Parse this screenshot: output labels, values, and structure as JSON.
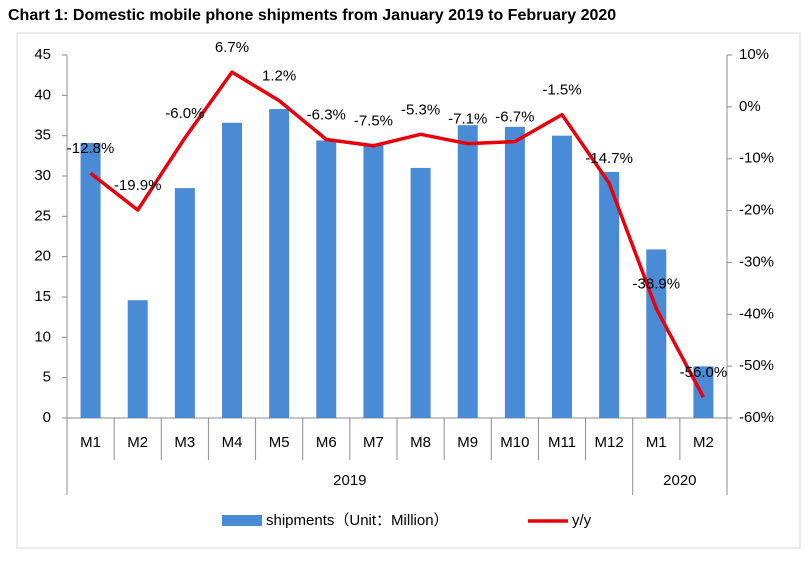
{
  "chart_data": {
    "type": "bar-line",
    "title": "Chart 1: Domestic mobile phone shipments from January 2019 to February 2020",
    "groups": [
      {
        "name": "2019",
        "categories": [
          "M1",
          "M2",
          "M3",
          "M4",
          "M5",
          "M6",
          "M7",
          "M8",
          "M9",
          "M10",
          "M11",
          "M12"
        ]
      },
      {
        "name": "2020",
        "categories": [
          "M1",
          "M2"
        ]
      }
    ],
    "series": [
      {
        "name": "shipments（Unit：Million）",
        "type": "bar",
        "color": "#4a8bd6",
        "values": [
          34.1,
          14.6,
          28.5,
          36.6,
          38.3,
          34.4,
          34.0,
          31.0,
          36.3,
          36.1,
          35.0,
          30.5,
          20.9,
          6.4
        ]
      },
      {
        "name": "y/y",
        "type": "line",
        "axis": "y2",
        "color": "#e8000b",
        "values": [
          -12.8,
          -19.9,
          -6.0,
          6.7,
          1.2,
          -6.3,
          -7.5,
          -5.3,
          -7.1,
          -6.7,
          -1.5,
          -14.7,
          -38.9,
          -56.0
        ],
        "value_labels": [
          "-12.8%",
          "-19.9%",
          "-6.0%",
          "6.7%",
          "1.2%",
          "-6.3%",
          "-7.5%",
          "-5.3%",
          "-7.1%",
          "-6.7%",
          "-1.5%",
          "-14.7%",
          "-38.9%",
          "-56.0%"
        ]
      }
    ],
    "ylim": [
      0,
      45
    ],
    "yticks": [
      0,
      5,
      10,
      15,
      20,
      25,
      30,
      35,
      40,
      45
    ],
    "y2lim": [
      -60,
      10
    ],
    "y2ticks": [
      {
        "value": -60,
        "label": "-60%"
      },
      {
        "value": -50,
        "label": "-50%"
      },
      {
        "value": -40,
        "label": "-40%"
      },
      {
        "value": -30,
        "label": "-30%"
      },
      {
        "value": -20,
        "label": "-20%"
      },
      {
        "value": -10,
        "label": "-10%"
      },
      {
        "value": 0,
        "label": "0%"
      },
      {
        "value": 10,
        "label": "10%"
      }
    ],
    "grid": false,
    "legend": "bottom"
  }
}
